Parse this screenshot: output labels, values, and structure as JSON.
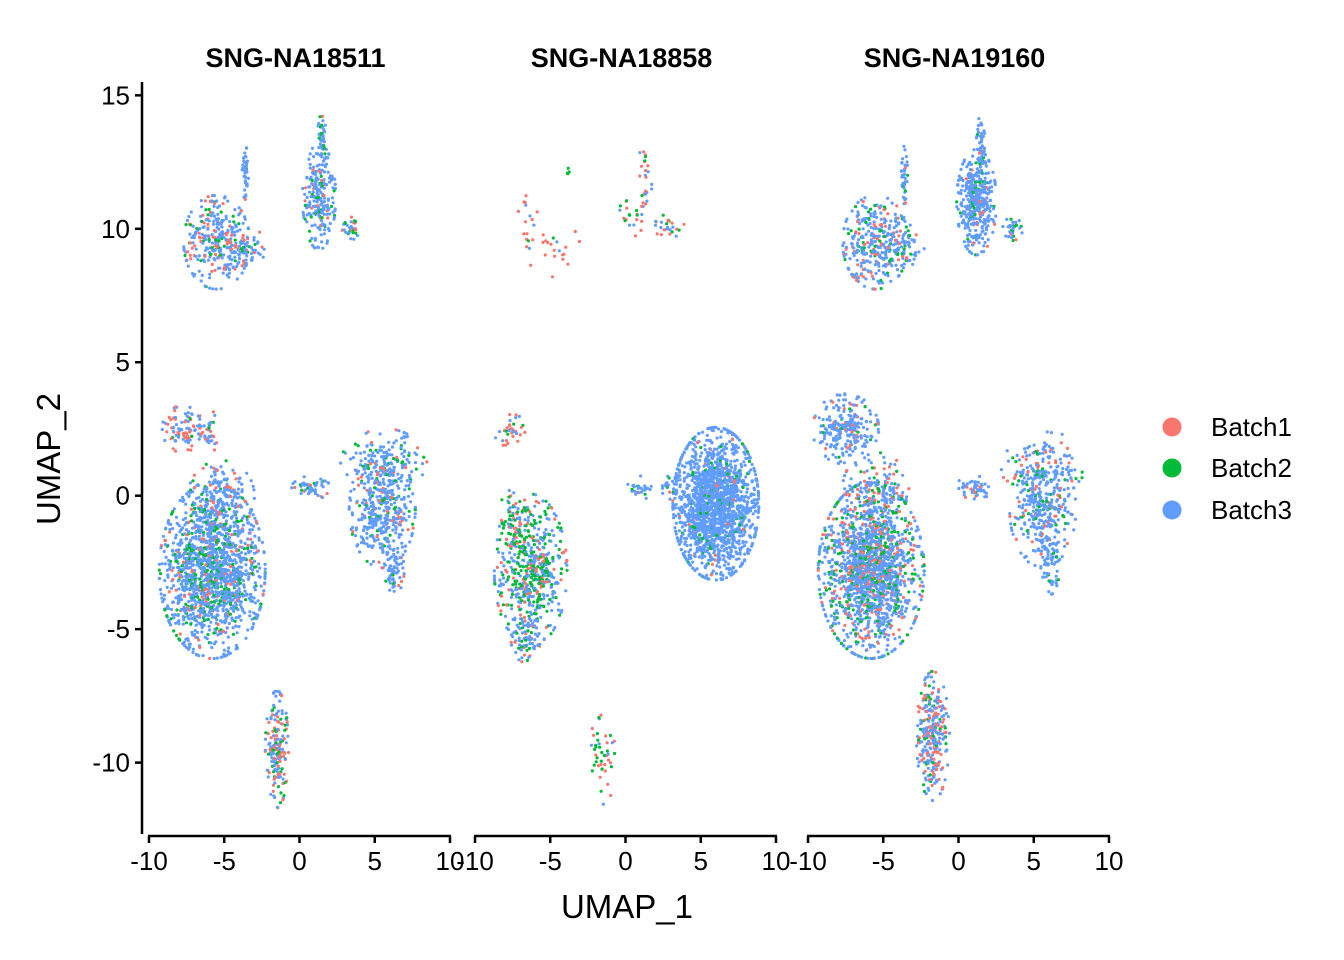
{
  "chart_data": {
    "type": "scatter",
    "xlabel": "UMAP_1",
    "ylabel": "UMAP_2",
    "xlim": [
      -10.2,
      10.2
    ],
    "ylim": [
      -12.6,
      15.5
    ],
    "x_ticks": [
      -10,
      -5,
      0,
      5,
      10
    ],
    "y_ticks": [
      -10,
      -5,
      0,
      5,
      10,
      15
    ],
    "x_tick_labels": [
      "-10",
      "-5",
      "0",
      "5",
      "10"
    ],
    "y_tick_labels": [
      "-10",
      "-5",
      "0",
      "5",
      "10",
      "15"
    ],
    "grid": false,
    "legend_position": "right",
    "series": [
      {
        "name": "Batch1",
        "color": "#F8766D"
      },
      {
        "name": "Batch2",
        "color": "#00BA38"
      },
      {
        "name": "Batch3",
        "color": "#619CFF"
      }
    ],
    "panels": [
      {
        "title": "SNG-NA18511",
        "clusters": [
          {
            "cx": -5.5,
            "cy": 9.5,
            "sx": 1.0,
            "sy": 0.8,
            "n": 300,
            "mix": [
              0.25,
              0.12,
              0.63
            ]
          },
          {
            "cx": -3.5,
            "cy": 9.2,
            "sx": 0.6,
            "sy": 0.4,
            "n": 60,
            "mix": [
              0.2,
              0.1,
              0.7
            ]
          },
          {
            "cx": -3.6,
            "cy": 12.2,
            "sx": 0.1,
            "sy": 0.5,
            "n": 40,
            "mix": [
              0.05,
              0.05,
              0.9
            ]
          },
          {
            "cx": 1.3,
            "cy": 11.2,
            "sx": 0.5,
            "sy": 0.9,
            "n": 220,
            "mix": [
              0.1,
              0.15,
              0.75
            ]
          },
          {
            "cx": 1.5,
            "cy": 13.2,
            "sx": 0.15,
            "sy": 0.5,
            "n": 40,
            "mix": [
              0.05,
              0.3,
              0.65
            ]
          },
          {
            "cx": 3.5,
            "cy": 10.0,
            "sx": 0.3,
            "sy": 0.2,
            "n": 30,
            "mix": [
              0.3,
              0.2,
              0.5
            ]
          },
          {
            "cx": -7.8,
            "cy": 2.5,
            "sx": 0.6,
            "sy": 0.4,
            "n": 80,
            "mix": [
              0.4,
              0.05,
              0.55
            ]
          },
          {
            "cx": -6.2,
            "cy": 2.4,
            "sx": 0.4,
            "sy": 0.4,
            "n": 40,
            "mix": [
              0.4,
              0.05,
              0.55
            ]
          },
          {
            "cx": -5.8,
            "cy": -2.8,
            "sx": 1.6,
            "sy": 1.5,
            "n": 1500,
            "mix": [
              0.08,
              0.15,
              0.77
            ]
          },
          {
            "cx": -5.2,
            "cy": 0.0,
            "sx": 1.0,
            "sy": 0.6,
            "n": 150,
            "mix": [
              0.15,
              0.1,
              0.75
            ]
          },
          {
            "cx": 0.8,
            "cy": 0.3,
            "sx": 0.6,
            "sy": 0.2,
            "n": 50,
            "mix": [
              0.1,
              0.05,
              0.85
            ]
          },
          {
            "cx": 5.5,
            "cy": -0.5,
            "sx": 1.0,
            "sy": 1.0,
            "n": 400,
            "mix": [
              0.1,
              0.1,
              0.8
            ]
          },
          {
            "cx": 5.6,
            "cy": 1.2,
            "sx": 1.3,
            "sy": 0.6,
            "n": 150,
            "mix": [
              0.12,
              0.12,
              0.76
            ]
          },
          {
            "cx": 6.3,
            "cy": -2.8,
            "sx": 0.3,
            "sy": 0.4,
            "n": 60,
            "mix": [
              0.05,
              0.05,
              0.9
            ]
          },
          {
            "cx": -1.5,
            "cy": -9.5,
            "sx": 0.35,
            "sy": 1.0,
            "n": 170,
            "mix": [
              0.3,
              0.2,
              0.5
            ]
          }
        ]
      },
      {
        "title": "SNG-NA18858",
        "clusters": [
          {
            "cx": -6.5,
            "cy": 10.2,
            "sx": 0.3,
            "sy": 0.6,
            "n": 12,
            "mix": [
              0.75,
              0.1,
              0.15
            ]
          },
          {
            "cx": -5.0,
            "cy": 9.3,
            "sx": 0.9,
            "sy": 0.5,
            "n": 25,
            "mix": [
              0.8,
              0.1,
              0.1
            ]
          },
          {
            "cx": -3.8,
            "cy": 12.3,
            "sx": 0.1,
            "sy": 0.2,
            "n": 4,
            "mix": [
              0.0,
              1.0,
              0.0
            ]
          },
          {
            "cx": 1.3,
            "cy": 11.8,
            "sx": 0.2,
            "sy": 0.8,
            "n": 25,
            "mix": [
              0.5,
              0.1,
              0.4
            ]
          },
          {
            "cx": 0.5,
            "cy": 10.6,
            "sx": 0.4,
            "sy": 0.4,
            "n": 20,
            "mix": [
              0.4,
              0.3,
              0.3
            ]
          },
          {
            "cx": 2.8,
            "cy": 10.1,
            "sx": 0.5,
            "sy": 0.2,
            "n": 25,
            "mix": [
              0.4,
              0.1,
              0.5
            ]
          },
          {
            "cx": -7.6,
            "cy": 2.4,
            "sx": 0.5,
            "sy": 0.3,
            "n": 35,
            "mix": [
              0.6,
              0.1,
              0.3
            ]
          },
          {
            "cx": -6.3,
            "cy": -2.8,
            "sx": 1.1,
            "sy": 1.3,
            "n": 550,
            "mix": [
              0.15,
              0.4,
              0.45
            ]
          },
          {
            "cx": -6.5,
            "cy": -5.4,
            "sx": 0.5,
            "sy": 0.4,
            "n": 60,
            "mix": [
              0.2,
              0.15,
              0.65
            ]
          },
          {
            "cx": -7.2,
            "cy": -1.0,
            "sx": 0.6,
            "sy": 0.6,
            "n": 60,
            "mix": [
              0.35,
              0.4,
              0.25
            ]
          },
          {
            "cx": 1.0,
            "cy": 0.3,
            "sx": 0.4,
            "sy": 0.2,
            "n": 25,
            "mix": [
              0.1,
              0.1,
              0.8
            ]
          },
          {
            "cx": 2.8,
            "cy": 0.3,
            "sx": 0.3,
            "sy": 0.2,
            "n": 15,
            "mix": [
              0.1,
              0.2,
              0.7
            ]
          },
          {
            "cx": 6.0,
            "cy": -0.3,
            "sx": 1.3,
            "sy": 1.3,
            "n": 1700,
            "mix": [
              0.02,
              0.06,
              0.92
            ]
          },
          {
            "cx": -1.5,
            "cy": -9.6,
            "sx": 0.35,
            "sy": 1.0,
            "n": 45,
            "mix": [
              0.45,
              0.4,
              0.15
            ]
          }
        ]
      },
      {
        "title": "SNG-NA19160",
        "clusters": [
          {
            "cx": -5.5,
            "cy": 9.5,
            "sx": 1.0,
            "sy": 0.8,
            "n": 320,
            "mix": [
              0.2,
              0.12,
              0.68
            ]
          },
          {
            "cx": -3.6,
            "cy": 9.3,
            "sx": 0.6,
            "sy": 0.4,
            "n": 60,
            "mix": [
              0.1,
              0.2,
              0.7
            ]
          },
          {
            "cx": -3.6,
            "cy": 12.0,
            "sx": 0.1,
            "sy": 0.5,
            "n": 40,
            "mix": [
              0.05,
              0.05,
              0.9
            ]
          },
          {
            "cx": 1.2,
            "cy": 11.0,
            "sx": 0.6,
            "sy": 0.9,
            "n": 400,
            "mix": [
              0.03,
              0.07,
              0.9
            ]
          },
          {
            "cx": 1.5,
            "cy": 13.2,
            "sx": 0.15,
            "sy": 0.5,
            "n": 40,
            "mix": [
              0.02,
              0.05,
              0.93
            ]
          },
          {
            "cx": 3.6,
            "cy": 10.0,
            "sx": 0.3,
            "sy": 0.2,
            "n": 30,
            "mix": [
              0.1,
              0.2,
              0.7
            ]
          },
          {
            "cx": -7.5,
            "cy": 2.5,
            "sx": 1.0,
            "sy": 0.6,
            "n": 250,
            "mix": [
              0.1,
              0.05,
              0.85
            ]
          },
          {
            "cx": -5.8,
            "cy": -2.8,
            "sx": 1.6,
            "sy": 1.5,
            "n": 1600,
            "mix": [
              0.15,
              0.18,
              0.67
            ]
          },
          {
            "cx": -5.5,
            "cy": 0.3,
            "sx": 1.0,
            "sy": 0.6,
            "n": 150,
            "mix": [
              0.25,
              0.1,
              0.65
            ]
          },
          {
            "cx": 1.0,
            "cy": 0.3,
            "sx": 0.6,
            "sy": 0.2,
            "n": 50,
            "mix": [
              0.1,
              0.05,
              0.85
            ]
          },
          {
            "cx": 5.6,
            "cy": -0.5,
            "sx": 1.0,
            "sy": 1.0,
            "n": 330,
            "mix": [
              0.1,
              0.12,
              0.78
            ]
          },
          {
            "cx": 5.7,
            "cy": 1.1,
            "sx": 1.3,
            "sy": 0.6,
            "n": 120,
            "mix": [
              0.15,
              0.12,
              0.73
            ]
          },
          {
            "cx": 6.1,
            "cy": -2.6,
            "sx": 0.3,
            "sy": 0.5,
            "n": 60,
            "mix": [
              0.05,
              0.05,
              0.9
            ]
          },
          {
            "cx": -1.7,
            "cy": -9.0,
            "sx": 0.5,
            "sy": 1.1,
            "n": 300,
            "mix": [
              0.3,
              0.12,
              0.58
            ]
          }
        ]
      }
    ]
  }
}
